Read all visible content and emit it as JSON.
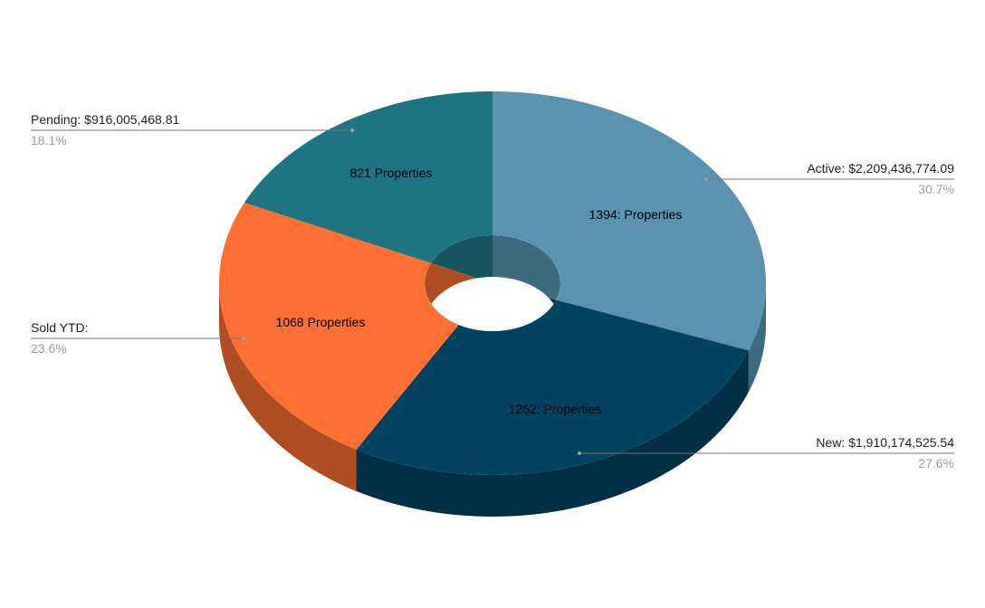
{
  "chart_data": {
    "type": "pie",
    "variant": "3d-donut",
    "start": "top",
    "direction": "clockwise",
    "slices": [
      {
        "name": "Active",
        "legend_label": "Active: $2,209,436,774.09",
        "value": 2209436774.09,
        "percent": "30.7%",
        "data_label": "1394: Properties",
        "color": "#5a92b0",
        "side_color": "#3d6a7e"
      },
      {
        "name": "New",
        "legend_label": "New: $1,910,174,525.54",
        "value": 1910174525.54,
        "percent": "27.6%",
        "data_label": "1252: Properties",
        "color": "#02435f",
        "side_color": "#012f45"
      },
      {
        "name": "Sold YTD",
        "legend_label": "Sold YTD:",
        "value": null,
        "percent": "23.6%",
        "data_label": "1068 Properties",
        "color": "#fe6f33",
        "side_color": "#b04d22"
      },
      {
        "name": "Pending",
        "legend_label": "Pending: $916,005,468.81",
        "value": 916005468.81,
        "percent": "18.1%",
        "data_label": "821 Properties",
        "color": "#1e7482",
        "side_color": "#175560"
      }
    ],
    "leader_line_color": "#757575"
  }
}
